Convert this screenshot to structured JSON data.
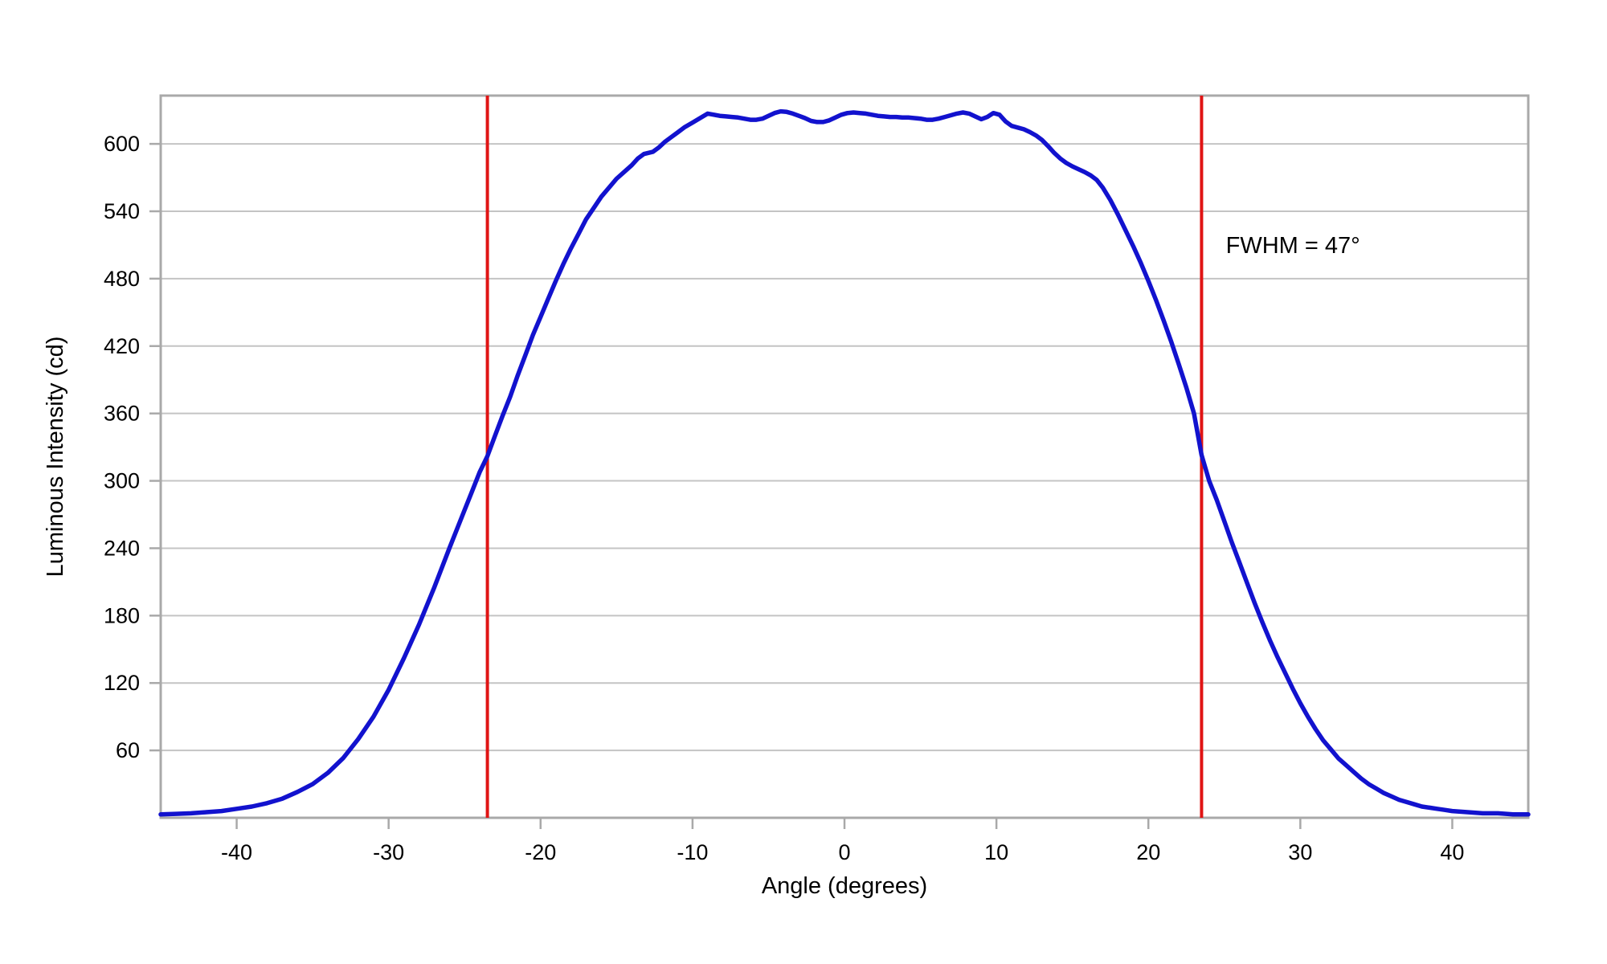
{
  "chart_data": {
    "type": "line",
    "title": "",
    "xlabel": "Angle (degrees)",
    "ylabel": "Luminous Intensity (cd)",
    "xlim": [
      -45,
      45
    ],
    "ylim": [
      0,
      643
    ],
    "xticks": [
      -40,
      -30,
      -20,
      -10,
      0,
      10,
      20,
      30,
      40
    ],
    "yticks": [
      60,
      120,
      180,
      240,
      300,
      360,
      420,
      480,
      540,
      600
    ],
    "grid": "horizontal-only",
    "legend": "none",
    "series": [
      {
        "name": "luminous-intensity-curve",
        "color": "#1212CE",
        "points": [
          [
            -45,
            3
          ],
          [
            -44,
            3.5
          ],
          [
            -43,
            4
          ],
          [
            -42,
            5
          ],
          [
            -41,
            6
          ],
          [
            -40,
            8
          ],
          [
            -39,
            10
          ],
          [
            -38,
            13
          ],
          [
            -37,
            17
          ],
          [
            -36,
            23
          ],
          [
            -35,
            30
          ],
          [
            -34,
            40
          ],
          [
            -33,
            53
          ],
          [
            -32,
            70
          ],
          [
            -31,
            90
          ],
          [
            -30,
            114
          ],
          [
            -29,
            142
          ],
          [
            -28,
            172
          ],
          [
            -27,
            205
          ],
          [
            -26,
            240
          ],
          [
            -25,
            274
          ],
          [
            -24.5,
            291
          ],
          [
            -24,
            308
          ],
          [
            -23.5,
            322
          ],
          [
            -23,
            340
          ],
          [
            -22.5,
            358
          ],
          [
            -22,
            375
          ],
          [
            -21.5,
            394
          ],
          [
            -21,
            412
          ],
          [
            -20.5,
            430
          ],
          [
            -20,
            446
          ],
          [
            -19.5,
            462
          ],
          [
            -19,
            478
          ],
          [
            -18.5,
            493
          ],
          [
            -18,
            507
          ],
          [
            -17.5,
            520
          ],
          [
            -17,
            533
          ],
          [
            -16.5,
            543
          ],
          [
            -16,
            553
          ],
          [
            -15.5,
            561
          ],
          [
            -15,
            569
          ],
          [
            -14.5,
            575
          ],
          [
            -14,
            581
          ],
          [
            -13.6,
            587
          ],
          [
            -13.2,
            591
          ],
          [
            -12.9,
            592
          ],
          [
            -12.6,
            593
          ],
          [
            -12.2,
            597
          ],
          [
            -11.8,
            602
          ],
          [
            -11.4,
            606
          ],
          [
            -11,
            610
          ],
          [
            -10.5,
            615
          ],
          [
            -10,
            619
          ],
          [
            -9.5,
            623
          ],
          [
            -9,
            627
          ],
          [
            -8.6,
            626
          ],
          [
            -8.2,
            625
          ],
          [
            -7.8,
            624.5
          ],
          [
            -7.4,
            624
          ],
          [
            -7,
            623.5
          ],
          [
            -6.6,
            622.5
          ],
          [
            -6.2,
            621.5
          ],
          [
            -5.8,
            621.5
          ],
          [
            -5.4,
            622.5
          ],
          [
            -5,
            625
          ],
          [
            -4.6,
            627.5
          ],
          [
            -4.2,
            629
          ],
          [
            -3.8,
            628.5
          ],
          [
            -3.4,
            627
          ],
          [
            -3,
            625
          ],
          [
            -2.6,
            623
          ],
          [
            -2.2,
            620.5
          ],
          [
            -1.8,
            619.5
          ],
          [
            -1.4,
            619.5
          ],
          [
            -1,
            621
          ],
          [
            -0.6,
            623.5
          ],
          [
            -0.2,
            626
          ],
          [
            0.2,
            627.5
          ],
          [
            0.6,
            628
          ],
          [
            1,
            627.5
          ],
          [
            1.4,
            627
          ],
          [
            1.8,
            626
          ],
          [
            2.2,
            625
          ],
          [
            2.6,
            624.5
          ],
          [
            3,
            624
          ],
          [
            3.4,
            624
          ],
          [
            3.8,
            623.5
          ],
          [
            4.2,
            623.5
          ],
          [
            4.6,
            623
          ],
          [
            5,
            622.5
          ],
          [
            5.4,
            621.5
          ],
          [
            5.8,
            621.5
          ],
          [
            6.2,
            622.5
          ],
          [
            6.6,
            624
          ],
          [
            7,
            625.5
          ],
          [
            7.4,
            627
          ],
          [
            7.8,
            628
          ],
          [
            8.2,
            627
          ],
          [
            8.6,
            624.5
          ],
          [
            9,
            622
          ],
          [
            9.4,
            624
          ],
          [
            9.8,
            627.5
          ],
          [
            10.2,
            626
          ],
          [
            10.6,
            620
          ],
          [
            11,
            616
          ],
          [
            11.4,
            614.5
          ],
          [
            11.8,
            613
          ],
          [
            12.2,
            610.5
          ],
          [
            12.6,
            607.5
          ],
          [
            13,
            603.5
          ],
          [
            13.4,
            598
          ],
          [
            13.8,
            592
          ],
          [
            14.2,
            587
          ],
          [
            14.6,
            583
          ],
          [
            15,
            580
          ],
          [
            15.4,
            577.5
          ],
          [
            15.8,
            575
          ],
          [
            16.2,
            572
          ],
          [
            16.6,
            568
          ],
          [
            17,
            561
          ],
          [
            17.5,
            550
          ],
          [
            18,
            537
          ],
          [
            18.5,
            523
          ],
          [
            19,
            509
          ],
          [
            19.5,
            494
          ],
          [
            20,
            478
          ],
          [
            20.5,
            461
          ],
          [
            21,
            443
          ],
          [
            21.5,
            424
          ],
          [
            22,
            404
          ],
          [
            22.5,
            383
          ],
          [
            23,
            360
          ],
          [
            23.5,
            323
          ],
          [
            24,
            300
          ],
          [
            24.5,
            283
          ],
          [
            25,
            264
          ],
          [
            25.5,
            245
          ],
          [
            26,
            227
          ],
          [
            26.5,
            209
          ],
          [
            27,
            191
          ],
          [
            27.5,
            174
          ],
          [
            28,
            158
          ],
          [
            28.5,
            143
          ],
          [
            29,
            129
          ],
          [
            29.5,
            115
          ],
          [
            30,
            102
          ],
          [
            30.5,
            90
          ],
          [
            31,
            79
          ],
          [
            31.5,
            69
          ],
          [
            32,
            61
          ],
          [
            32.5,
            53
          ],
          [
            33,
            47
          ],
          [
            33.5,
            41
          ],
          [
            34,
            35
          ],
          [
            34.5,
            30
          ],
          [
            35,
            26
          ],
          [
            35.5,
            22
          ],
          [
            36,
            19
          ],
          [
            36.5,
            16
          ],
          [
            37,
            14
          ],
          [
            37.5,
            12
          ],
          [
            38,
            10
          ],
          [
            38.5,
            9
          ],
          [
            39,
            8
          ],
          [
            39.5,
            7
          ],
          [
            40,
            6
          ],
          [
            41,
            5
          ],
          [
            42,
            4
          ],
          [
            43,
            4
          ],
          [
            44,
            3
          ],
          [
            45,
            3
          ]
        ]
      }
    ],
    "reference_lines": [
      {
        "name": "fwhm-left-line",
        "orientation": "vertical",
        "x": -23.5,
        "color": "#E01414"
      },
      {
        "name": "fwhm-right-line",
        "orientation": "vertical",
        "x": 23.5,
        "color": "#E01414"
      }
    ],
    "annotations": [
      {
        "text": "FWHM = 47°",
        "x": 25.1,
        "y": 510,
        "anchor": "start"
      }
    ],
    "colors": {
      "curve": "#1212CE",
      "reference": "#E01414",
      "grid": "#C4C4C4",
      "frame": "#A9A9A9",
      "text": "#000000",
      "background": "#FFFFFF"
    }
  }
}
